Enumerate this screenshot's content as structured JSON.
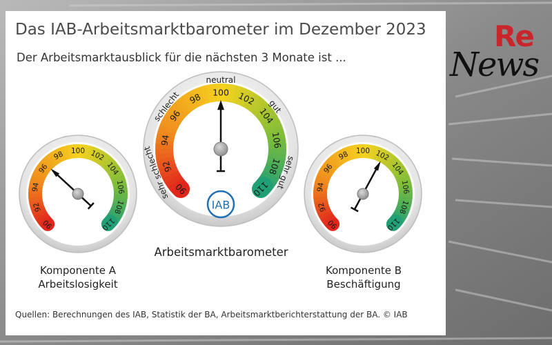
{
  "title": "Das IAB-Arbeitsmarktbarometer im Dezember 2023",
  "subtitle": "Der Arbeitsmarktausblick für die nächsten 3 Monate ist ...",
  "source": "Quellen: Berechnungen des IAB, Statistik der BA, Arbeitsmarktberichterstattung der BA. © IAB",
  "logo": {
    "top": "Re",
    "bottom": "News"
  },
  "colors": {
    "red": "#e1261c",
    "orange": "#f08c1e",
    "yellow": "#f5d21e",
    "green": "#7dbd3a",
    "teal": "#1a9e7a",
    "iab_blue": "#1f6fb5"
  },
  "chart_data": [
    {
      "type": "gauge",
      "name": "Komponente A",
      "label_line1": "Komponente A",
      "label_line2": "Arbeitslosigkeit",
      "scale_min": 90,
      "scale_max": 110,
      "tick_labels": [
        "90",
        "92",
        "94",
        "96",
        "98",
        "100",
        "102",
        "104",
        "106",
        "108",
        "110"
      ],
      "value": 96.5
    },
    {
      "type": "gauge",
      "name": "Arbeitsmarktbarometer",
      "label_line1": "Arbeitsmarktbarometer",
      "label_line2": "",
      "scale_min": 90,
      "scale_max": 110,
      "tick_labels": [
        "90",
        "92",
        "94",
        "96",
        "98",
        "100",
        "102",
        "104",
        "106",
        "108",
        "110"
      ],
      "category_labels": [
        "sehr schlecht",
        "schlecht",
        "neutral",
        "gut",
        "sehr gut"
      ],
      "center_logo": "IAB",
      "value": 100.0
    },
    {
      "type": "gauge",
      "name": "Komponente B",
      "label_line1": "Komponente B",
      "label_line2": "Beschäftigung",
      "scale_min": 90,
      "scale_max": 110,
      "tick_labels": [
        "90",
        "92",
        "94",
        "96",
        "98",
        "100",
        "102",
        "104",
        "106",
        "108",
        "110"
      ],
      "value": 102.1
    }
  ]
}
